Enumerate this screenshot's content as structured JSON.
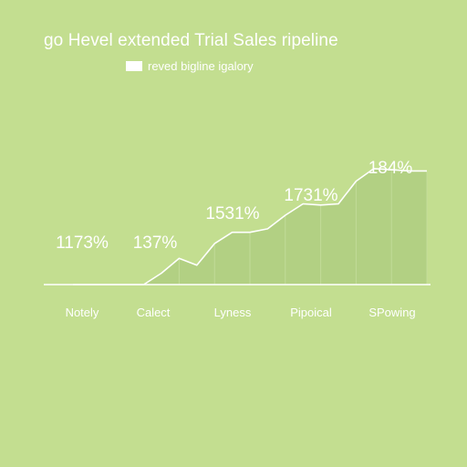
{
  "chart_data": {
    "type": "area",
    "title": "go Hevel extended Trial Sales ripeline",
    "legend": {
      "label": "reved bigline igalory",
      "position": "top-left",
      "color": "#ffffff"
    },
    "categories": [
      "Notely",
      "Calect",
      "Lyness",
      "Pipoical",
      "SPowing"
    ],
    "x": [
      0,
      0.5,
      1,
      1.5,
      2,
      2.5,
      3,
      3.5,
      4,
      4.5,
      5,
      5.5,
      6,
      6.5,
      7,
      7.5,
      8,
      8.5,
      9,
      9.5,
      10
    ],
    "series": [
      {
        "values": [
          0,
          0,
          0,
          0,
          0,
          10,
          23,
          17,
          36,
          46,
          46,
          49,
          61,
          71,
          70,
          71,
          91,
          102,
          101,
          100,
          100
        ],
        "data_labels": [
          {
            "x": 1.5,
            "text": "1173%"
          },
          {
            "x": 3.2,
            "text": "137%"
          },
          {
            "x": 5.2,
            "text": "1531%"
          },
          {
            "x": 7.5,
            "text": "1731%"
          },
          {
            "x": 9.0,
            "text": "184%"
          }
        ]
      }
    ],
    "xlim": [
      0,
      10
    ],
    "ylim": [
      0,
      130
    ],
    "grid": false,
    "colors": {
      "background": "#c3de90",
      "area_fill": "#b2d083",
      "line": "#ffffff",
      "text": "#ffffff"
    }
  }
}
